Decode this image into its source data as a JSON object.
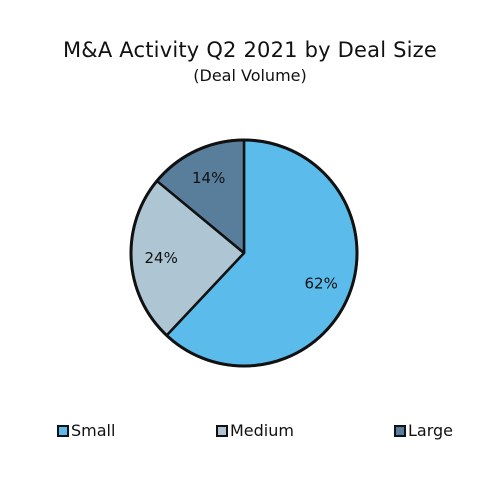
{
  "chart_data": {
    "type": "pie",
    "title": "M&A Activity Q2 2021 by Deal Size",
    "subtitle": "(Deal Volume)",
    "slices": [
      {
        "label": "Small",
        "value": 62,
        "value_label": "62%",
        "color": "#5bbcec"
      },
      {
        "label": "Medium",
        "value": 24,
        "value_label": "24%",
        "color": "#aec6d3"
      },
      {
        "label": "Large",
        "value": 14,
        "value_label": "14%",
        "color": "#587e9c"
      }
    ],
    "legend_position": "bottom",
    "start_angle": "12 o'clock",
    "direction": "clockwise"
  }
}
